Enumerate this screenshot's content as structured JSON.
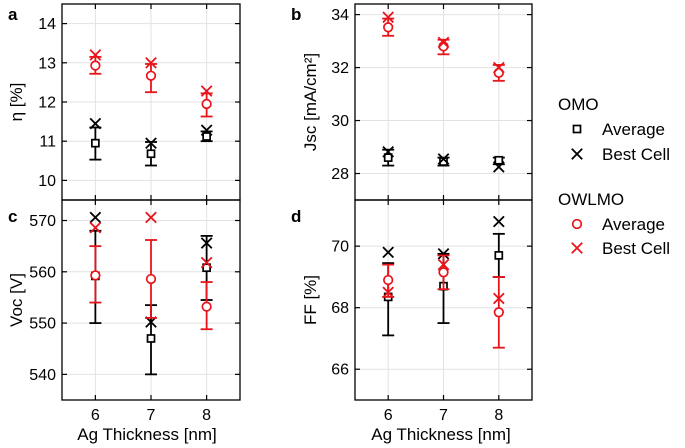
{
  "figure": {
    "xlabel": "Ag Thickness [nm]",
    "colors": {
      "omo": "#000000",
      "owlmo": "#e8141b",
      "grid": "#e2e2e2"
    }
  },
  "legend": {
    "groups": [
      {
        "title": "OMO",
        "color": "#000000",
        "items": [
          {
            "marker": "square",
            "label": "Average"
          },
          {
            "marker": "x",
            "label": "Best Cell"
          }
        ]
      },
      {
        "title": "OWLMO",
        "color": "#e8141b",
        "items": [
          {
            "marker": "circle",
            "label": "Average"
          },
          {
            "marker": "x",
            "label": "Best Cell"
          }
        ]
      }
    ]
  },
  "chart_data": [
    {
      "type": "scatter",
      "panel": "a",
      "title": "",
      "xlabel": "Ag Thickness [nm]",
      "ylabel": "η [%]",
      "x": [
        6,
        7,
        8
      ],
      "xlim": [
        5.4,
        8.6
      ],
      "ylim": [
        9.5,
        14.5
      ],
      "yticks": [
        10,
        11,
        12,
        13,
        14
      ],
      "series": [
        {
          "name": "OMO Average",
          "marker": "square",
          "color": "#000000",
          "values": [
            10.95,
            10.68,
            11.12
          ],
          "err_low": [
            10.53,
            10.38,
            11.0
          ],
          "err_high": [
            11.35,
            10.98,
            11.25
          ]
        },
        {
          "name": "OMO Best Cell",
          "marker": "x",
          "color": "#000000",
          "values": [
            11.45,
            10.95,
            11.28
          ]
        },
        {
          "name": "OWLMO Average",
          "marker": "circle",
          "color": "#e8141b",
          "values": [
            12.93,
            12.67,
            11.95
          ],
          "err_low": [
            12.72,
            12.25,
            11.63
          ],
          "err_high": [
            13.15,
            12.97,
            12.22
          ]
        },
        {
          "name": "OWLMO Best Cell",
          "marker": "x",
          "color": "#e8141b",
          "values": [
            13.2,
            13.0,
            12.28
          ]
        }
      ]
    },
    {
      "type": "scatter",
      "panel": "b",
      "title": "",
      "xlabel": "Ag Thickness [nm]",
      "ylabel": "Jsc [mA/cm²]",
      "x": [
        6,
        7,
        8
      ],
      "xlim": [
        5.4,
        8.6
      ],
      "ylim": [
        27,
        34.4
      ],
      "yticks": [
        28,
        30,
        32,
        34
      ],
      "series": [
        {
          "name": "OMO Average",
          "marker": "square",
          "color": "#000000",
          "values": [
            28.6,
            28.45,
            28.5
          ],
          "err_low": [
            28.3,
            28.3,
            28.35
          ],
          "err_high": [
            28.9,
            28.6,
            28.6
          ]
        },
        {
          "name": "OMO Best Cell",
          "marker": "x",
          "color": "#000000",
          "values": [
            28.82,
            28.55,
            28.25
          ]
        },
        {
          "name": "OWLMO Average",
          "marker": "circle",
          "color": "#e8141b",
          "values": [
            33.52,
            32.8,
            31.8
          ],
          "err_low": [
            33.2,
            32.5,
            31.5
          ],
          "err_high": [
            33.85,
            33.05,
            32.1
          ]
        },
        {
          "name": "OWLMO Best Cell",
          "marker": "x",
          "color": "#e8141b",
          "values": [
            33.9,
            32.95,
            32.0
          ]
        }
      ]
    },
    {
      "type": "scatter",
      "panel": "c",
      "title": "",
      "xlabel": "Ag Thickness [nm]",
      "ylabel": "Voc [V]",
      "x": [
        6,
        7,
        8
      ],
      "xlim": [
        5.4,
        8.6
      ],
      "ylim": [
        535,
        574
      ],
      "yticks": [
        540,
        550,
        560,
        570
      ],
      "series": [
        {
          "name": "OMO Average",
          "marker": "square",
          "color": "#000000",
          "values": [
            559.2,
            547.0,
            560.8
          ],
          "err_low": [
            550.0,
            540.0,
            554.5
          ],
          "err_high": [
            568.0,
            553.5,
            567.0
          ]
        },
        {
          "name": "OMO Best Cell",
          "marker": "x",
          "color": "#000000",
          "values": [
            570.6,
            550.2,
            565.6
          ]
        },
        {
          "name": "OWLMO Average",
          "marker": "circle",
          "color": "#e8141b",
          "values": [
            559.3,
            558.6,
            553.2
          ],
          "err_low": [
            554.0,
            551.0,
            548.8
          ],
          "err_high": [
            565.0,
            566.2,
            558.0
          ]
        },
        {
          "name": "OWLMO Best Cell",
          "marker": "x",
          "color": "#e8141b",
          "values": [
            568.6,
            570.6,
            561.8
          ]
        }
      ]
    },
    {
      "type": "scatter",
      "panel": "d",
      "title": "",
      "xlabel": "Ag Thickness [nm]",
      "ylabel": "FF [%]",
      "x": [
        6,
        7,
        8
      ],
      "xlim": [
        5.4,
        8.6
      ],
      "ylim": [
        65,
        71.5
      ],
      "yticks": [
        66,
        68,
        70
      ],
      "series": [
        {
          "name": "OMO Average",
          "marker": "square",
          "color": "#000000",
          "values": [
            68.35,
            68.7,
            69.7
          ],
          "err_low": [
            67.1,
            67.5,
            69.0
          ],
          "err_high": [
            69.45,
            69.75,
            70.4
          ]
        },
        {
          "name": "OMO Best Cell",
          "marker": "x",
          "color": "#000000",
          "values": [
            69.8,
            69.75,
            70.8
          ]
        },
        {
          "name": "OWLMO Average",
          "marker": "circle",
          "color": "#e8141b",
          "values": [
            68.9,
            69.15,
            67.85
          ],
          "err_low": [
            68.35,
            68.6,
            66.7
          ],
          "err_high": [
            69.4,
            69.7,
            69.0
          ]
        },
        {
          "name": "OWLMO Best Cell",
          "marker": "x",
          "color": "#e8141b",
          "values": [
            68.5,
            69.4,
            68.3
          ]
        }
      ]
    }
  ]
}
